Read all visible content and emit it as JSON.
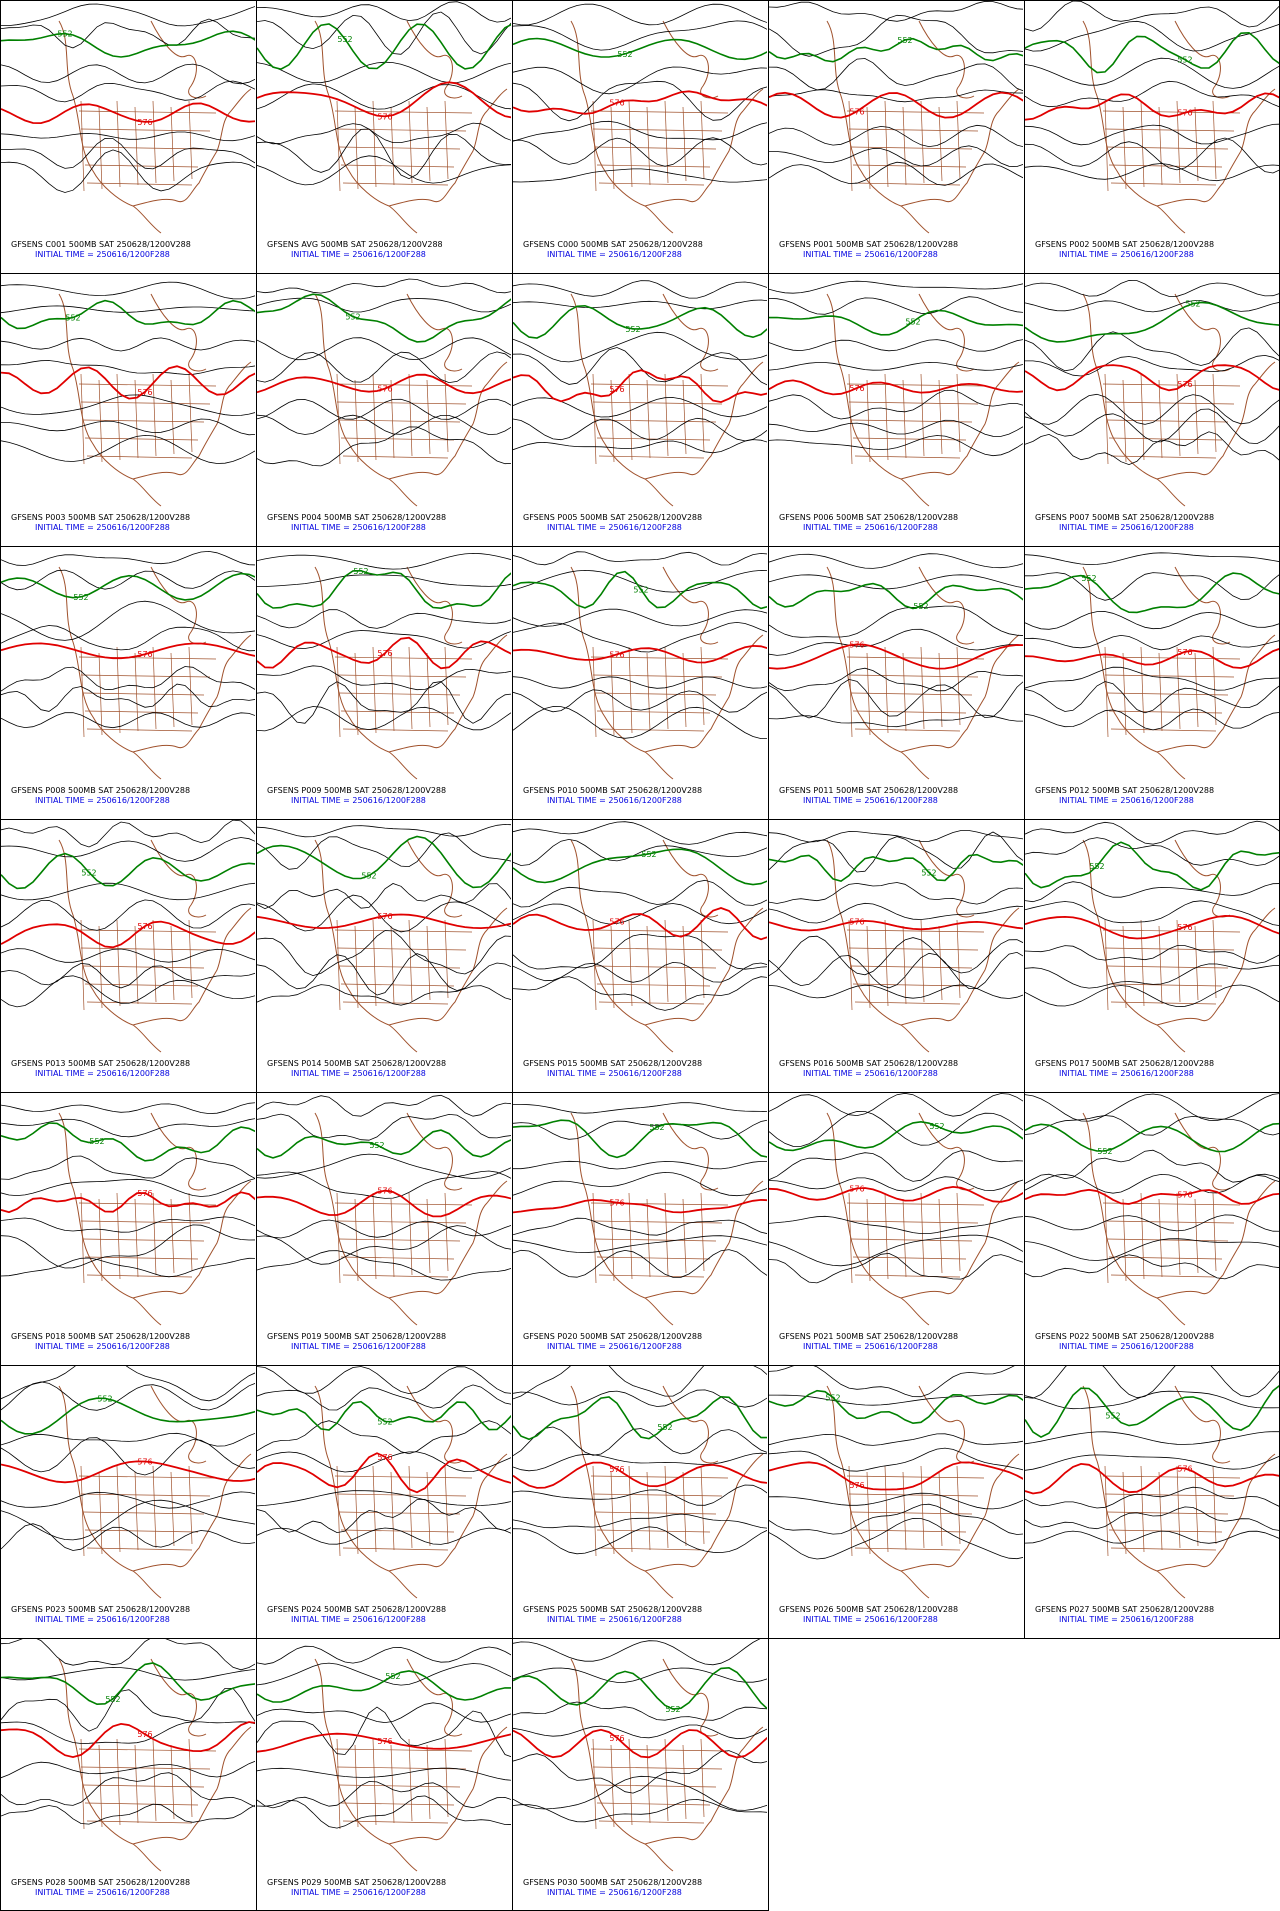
{
  "panels": [
    {
      "title": "GFSENS C001 500MB SAT 250628/1200V288",
      "init": "INITIAL TIME = 250616/1200F288",
      "labels": [
        "552",
        "576"
      ]
    },
    {
      "title": "GFSENS AVG 500MB SAT 250628/1200V288",
      "init": "INITIAL TIME = 250616/1200F288",
      "labels": [
        "552",
        "576"
      ]
    },
    {
      "title": "GFSENS C000 500MB SAT 250628/1200V288",
      "init": "INITIAL TIME = 250616/1200F288",
      "labels": [
        "552",
        "576"
      ]
    },
    {
      "title": "GFSENS P001 500MB SAT 250628/1200V288",
      "init": "INITIAL TIME = 250616/1200F288",
      "labels": [
        "552",
        "576"
      ]
    },
    {
      "title": "GFSENS P002 500MB SAT 250628/1200V288",
      "init": "INITIAL TIME = 250616/1200F288",
      "labels": [
        "552",
        "576"
      ]
    },
    {
      "title": "GFSENS P003 500MB SAT 250628/1200V288",
      "init": "INITIAL TIME = 250616/1200F288",
      "labels": [
        "552",
        "576"
      ]
    },
    {
      "title": "GFSENS P004 500MB SAT 250628/1200V288",
      "init": "INITIAL TIME = 250616/1200F288",
      "labels": [
        "552",
        "576"
      ]
    },
    {
      "title": "GFSENS P005 500MB SAT 250628/1200V288",
      "init": "INITIAL TIME = 250616/1200F288",
      "labels": [
        "552",
        "576"
      ]
    },
    {
      "title": "GFSENS P006 500MB SAT 250628/1200V288",
      "init": "INITIAL TIME = 250616/1200F288",
      "labels": [
        "552",
        "576"
      ]
    },
    {
      "title": "GFSENS P007 500MB SAT 250628/1200V288",
      "init": "INITIAL TIME = 250616/1200F288",
      "labels": [
        "552",
        "576"
      ]
    },
    {
      "title": "GFSENS P008 500MB SAT 250628/1200V288",
      "init": "INITIAL TIME = 250616/1200F288",
      "labels": [
        "552",
        "576"
      ]
    },
    {
      "title": "GFSENS P009 500MB SAT 250628/1200V288",
      "init": "INITIAL TIME = 250616/1200F288",
      "labels": [
        "552",
        "576"
      ]
    },
    {
      "title": "GFSENS P010 500MB SAT 250628/1200V288",
      "init": "INITIAL TIME = 250616/1200F288",
      "labels": [
        "552",
        "576"
      ]
    },
    {
      "title": "GFSENS P011 500MB SAT 250628/1200V288",
      "init": "INITIAL TIME = 250616/1200F288",
      "labels": [
        "552",
        "576"
      ]
    },
    {
      "title": "GFSENS P012 500MB SAT 250628/1200V288",
      "init": "INITIAL TIME = 250616/1200F288",
      "labels": [
        "552",
        "576"
      ]
    },
    {
      "title": "GFSENS P013 500MB SAT 250628/1200V288",
      "init": "INITIAL TIME = 250616/1200F288",
      "labels": [
        "552",
        "576"
      ]
    },
    {
      "title": "GFSENS P014 500MB SAT 250628/1200V288",
      "init": "INITIAL TIME = 250616/1200F288",
      "labels": [
        "552",
        "576"
      ]
    },
    {
      "title": "GFSENS P015 500MB SAT 250628/1200V288",
      "init": "INITIAL TIME = 250616/1200F288",
      "labels": [
        "552",
        "576"
      ]
    },
    {
      "title": "GFSENS P016 500MB SAT 250628/1200V288",
      "init": "INITIAL TIME = 250616/1200F288",
      "labels": [
        "552",
        "576"
      ]
    },
    {
      "title": "GFSENS P017 500MB SAT 250628/1200V288",
      "init": "INITIAL TIME = 250616/1200F288",
      "labels": [
        "552",
        "576"
      ]
    },
    {
      "title": "GFSENS P018 500MB SAT 250628/1200V288",
      "init": "INITIAL TIME = 250616/1200F288",
      "labels": [
        "552",
        "576"
      ]
    },
    {
      "title": "GFSENS P019 500MB SAT 250628/1200V288",
      "init": "INITIAL TIME = 250616/1200F288",
      "labels": [
        "552",
        "576"
      ]
    },
    {
      "title": "GFSENS P020 500MB SAT 250628/1200V288",
      "init": "INITIAL TIME = 250616/1200F288",
      "labels": [
        "552",
        "576"
      ]
    },
    {
      "title": "GFSENS P021 500MB SAT 250628/1200V288",
      "init": "INITIAL TIME = 250616/1200F288",
      "labels": [
        "552",
        "576"
      ]
    },
    {
      "title": "GFSENS P022 500MB SAT 250628/1200V288",
      "init": "INITIAL TIME = 250616/1200F288",
      "labels": [
        "552",
        "576"
      ]
    },
    {
      "title": "GFSENS P023 500MB SAT 250628/1200V288",
      "init": "INITIAL TIME = 250616/1200F288",
      "labels": [
        "552",
        "576"
      ]
    },
    {
      "title": "GFSENS P024 500MB SAT 250628/1200V288",
      "init": "INITIAL TIME = 250616/1200F288",
      "labels": [
        "552",
        "576"
      ]
    },
    {
      "title": "GFSENS P025 500MB SAT 250628/1200V288",
      "init": "INITIAL TIME = 250616/1200F288",
      "labels": [
        "552",
        "576"
      ]
    },
    {
      "title": "GFSENS P026 500MB SAT 250628/1200V288",
      "init": "INITIAL TIME = 250616/1200F288",
      "labels": [
        "552",
        "576"
      ]
    },
    {
      "title": "GFSENS P027 500MB SAT 250628/1200V288",
      "init": "INITIAL TIME = 250616/1200F288",
      "labels": [
        "552",
        "576"
      ]
    },
    {
      "title": "GFSENS P028 500MB SAT 250628/1200V288",
      "init": "INITIAL TIME = 250616/1200F288",
      "labels": [
        "552",
        "576"
      ]
    },
    {
      "title": "GFSENS P029 500MB SAT 250628/1200V288",
      "init": "INITIAL TIME = 250616/1200F288",
      "labels": [
        "552",
        "576"
      ]
    },
    {
      "title": "GFSENS P030 500MB SAT 250628/1200V288",
      "init": "INITIAL TIME = 250616/1200F288",
      "labels": [
        "552",
        "576"
      ]
    }
  ]
}
